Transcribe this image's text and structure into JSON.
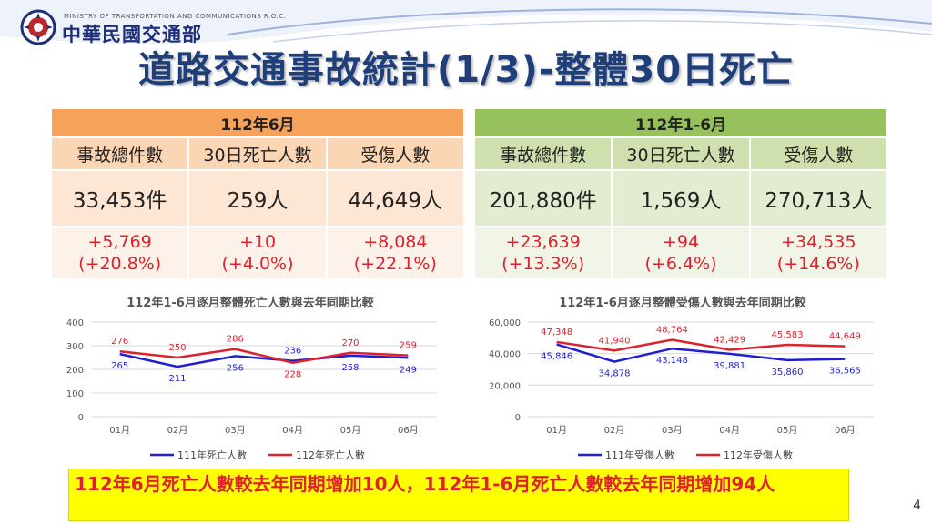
{
  "header": {
    "ministry_en": "MINISTRY OF TRANSPORTATION AND COMMUNICATIONS R.O.C.",
    "ministry_zh": "中華民國交通部",
    "title": "道路交通事故統計(1/3)-整體30日死亡"
  },
  "tables": [
    {
      "period": "112年6月",
      "columns": [
        "事故總件數",
        "30日死亡人數",
        "受傷人數"
      ],
      "values": [
        "33,453件",
        "259人",
        "44,649人"
      ],
      "changes": [
        [
          "+5,769",
          "(+20.8%)"
        ],
        [
          "+10",
          "(+4.0%)"
        ],
        [
          "+8,084",
          "(+22.1%)"
        ]
      ]
    },
    {
      "period": "112年1-6月",
      "columns": [
        "事故總件數",
        "30日死亡人數",
        "受傷人數"
      ],
      "values": [
        "201,880件",
        "1,569人",
        "270,713人"
      ],
      "changes": [
        [
          "+23,639",
          "(+13.3%)"
        ],
        [
          "+94",
          "(+6.4%)"
        ],
        [
          "+34,535",
          "(+14.6%)"
        ]
      ]
    }
  ],
  "chart_data": [
    {
      "type": "line",
      "title": "112年1-6月逐月整體死亡人數與去年同期比較",
      "categories": [
        "01月",
        "02月",
        "03月",
        "04月",
        "05月",
        "06月"
      ],
      "yticks": [
        "0",
        "100",
        "200",
        "300",
        "400"
      ],
      "ylim": [
        0,
        400
      ],
      "series": [
        {
          "name": "111年死亡人數",
          "color": "#1f1fd6",
          "values": [
            265,
            211,
            256,
            236,
            258,
            249
          ],
          "labels": [
            "265",
            "211",
            "256",
            "236",
            "258",
            "249"
          ]
        },
        {
          "name": "112年死亡人數",
          "color": "#e0202a",
          "values": [
            276,
            250,
            286,
            228,
            270,
            259
          ],
          "labels": [
            "276",
            "250",
            "286",
            "228",
            "270",
            "259"
          ]
        }
      ],
      "legend": "bottom"
    },
    {
      "type": "line",
      "title": "112年1-6月逐月整體受傷人數與去年同期比較",
      "categories": [
        "01月",
        "02月",
        "03月",
        "04月",
        "05月",
        "06月"
      ],
      "yticks": [
        "0",
        "20,000",
        "40,000",
        "60,000"
      ],
      "ylim": [
        0,
        60000
      ],
      "series": [
        {
          "name": "111年受傷人數",
          "color": "#1f1fd6",
          "values": [
            45846,
            34878,
            43148,
            39881,
            35860,
            36565
          ],
          "labels": [
            "45,846",
            "34,878",
            "43,148",
            "39,881",
            "35,860",
            "36,565"
          ]
        },
        {
          "name": "112年受傷人數",
          "color": "#e0202a",
          "values": [
            47348,
            41940,
            48764,
            42429,
            45583,
            44649
          ],
          "labels": [
            "47,348",
            "41,940",
            "48,764",
            "42,429",
            "45,583",
            "44,649"
          ]
        }
      ],
      "legend": "bottom"
    }
  ],
  "note": {
    "text": "112年6月死亡人數較去年同期增加10人，112年1-6月死亡人數較去年同期增加94人"
  },
  "page_number": "4"
}
